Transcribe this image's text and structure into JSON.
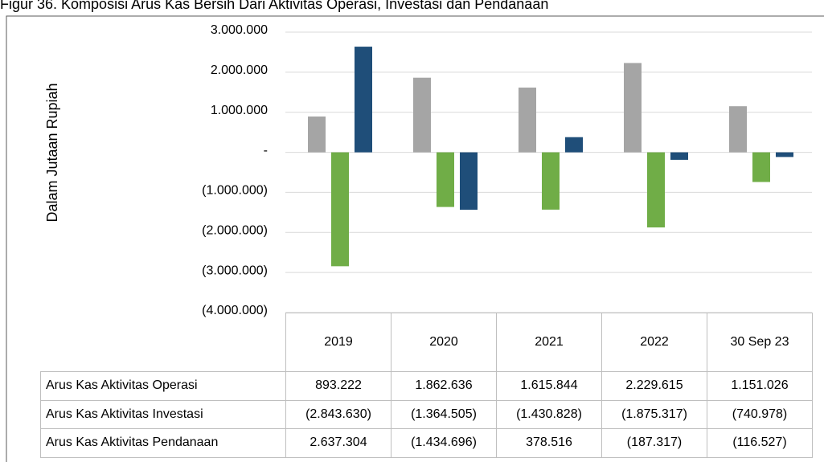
{
  "chart_data": {
    "type": "bar",
    "title": "Figur 36. Komposisi Arus Kas Bersih Dari Aktivitas Operasi, Investasi dan Pendanaan",
    "y_label": "Dalam Jutaan Rupiah",
    "categories": [
      "2019",
      "2020",
      "2021",
      "2022",
      "30 Sep 23"
    ],
    "series": [
      {
        "name": "Arus Kas Aktivitas Operasi",
        "color": "#a5a5a5",
        "values": [
          893222,
          1862636,
          1615844,
          2229615,
          1151026
        ],
        "value_labels": [
          "893.222",
          "1.862.636",
          "1.615.844",
          "2.229.615",
          "1.151.026"
        ]
      },
      {
        "name": "Arus Kas Aktivitas Investasi",
        "color": "#70ad47",
        "values": [
          -2843630,
          -1364505,
          -1430828,
          -1875317,
          -740978
        ],
        "value_labels": [
          "(2.843.630)",
          "(1.364.505)",
          "(1.430.828)",
          "(1.875.317)",
          "(740.978)"
        ]
      },
      {
        "name": "Arus Kas Aktivitas Pendanaan",
        "color": "#1f4e79",
        "values": [
          2637304,
          -1434696,
          378516,
          -187317,
          -116527
        ],
        "value_labels": [
          "2.637.304",
          "(1.434.696)",
          "378.516",
          "(187.317)",
          "(116.527)"
        ]
      }
    ],
    "ylim": [
      -4000000,
      3000000
    ],
    "yticks": [
      {
        "value": 3000000,
        "label": "3.000.000"
      },
      {
        "value": 2000000,
        "label": "2.000.000"
      },
      {
        "value": 1000000,
        "label": "1.000.000"
      },
      {
        "value": 0,
        "label": "-"
      },
      {
        "value": -1000000,
        "label": "(1.000.000)"
      },
      {
        "value": -2000000,
        "label": "(2.000.000)"
      },
      {
        "value": -3000000,
        "label": "(3.000.000)"
      },
      {
        "value": -4000000,
        "label": "(4.000.000)"
      }
    ],
    "grid": true
  }
}
